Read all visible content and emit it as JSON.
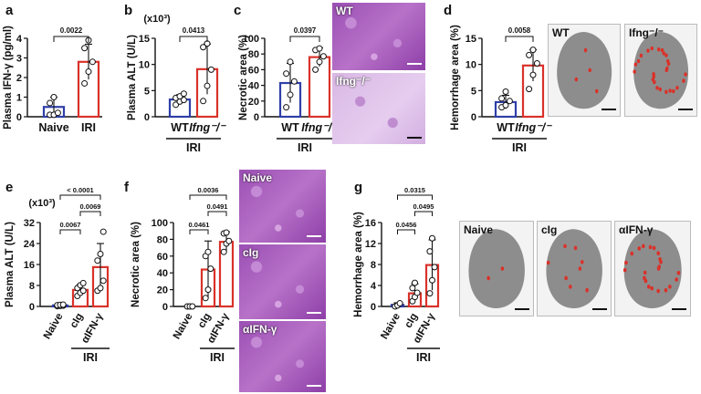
{
  "panels": {
    "a": {
      "letter": "a",
      "ylabel": "Plasma IFN-γ (pg/ml)",
      "yticks": [
        "0",
        "1",
        "2",
        "3",
        "4"
      ],
      "categories": [
        "Naive",
        "IRI"
      ],
      "pvalue": "0.0022"
    },
    "b": {
      "letter": "b",
      "ylabel": "Plasma ALT (U/L)",
      "scale": "(x10³)",
      "yticks": [
        "0",
        "5",
        "10",
        "15"
      ],
      "categories": [
        "WT",
        "Ifng⁻/⁻"
      ],
      "group": "IRI",
      "pvalue": "0.0413"
    },
    "c": {
      "letter": "c",
      "ylabel": "Necrotic area (%)",
      "yticks": [
        "0",
        "20",
        "40",
        "60",
        "80",
        "100"
      ],
      "categories": [
        "WT",
        "Ifng⁻/⁻"
      ],
      "group": "IRI",
      "pvalue": "0.0397",
      "images": [
        {
          "label": "WT"
        },
        {
          "label": "Ifng⁻/⁻"
        }
      ]
    },
    "d": {
      "letter": "d",
      "ylabel": "Hemorrhage area (%)",
      "yticks": [
        "0",
        "5",
        "10",
        "15"
      ],
      "categories": [
        "WT",
        "Ifng⁻/⁻"
      ],
      "group": "IRI",
      "pvalue": "0.0058",
      "images": [
        {
          "label": "WT"
        },
        {
          "label": "Ifng⁻/⁻"
        }
      ]
    },
    "e": {
      "letter": "e",
      "ylabel": "Plasma ALT (U/L)",
      "scale": "(x10³)",
      "yticks": [
        "0",
        "8",
        "16",
        "24",
        "32"
      ],
      "categories": [
        "Naive",
        "cIg",
        "αIFN-γ"
      ],
      "group": "IRI",
      "pvalues": [
        "< 0.0001",
        "0.0069",
        "0.0067"
      ]
    },
    "f": {
      "letter": "f",
      "ylabel": "Necrotic area (%)",
      "yticks": [
        "0",
        "20",
        "40",
        "60",
        "80",
        "100"
      ],
      "categories": [
        "Naive",
        "cIg",
        "αIFN-γ"
      ],
      "group": "IRI",
      "pvalues": [
        "0.0036",
        "0.0491",
        "0.0461"
      ],
      "images": [
        {
          "label": "Naive"
        },
        {
          "label": "cIg"
        },
        {
          "label": "αIFN-γ"
        }
      ]
    },
    "g": {
      "letter": "g",
      "ylabel": "Hemorrhage area (%)",
      "yticks": [
        "0",
        "4",
        "8",
        "12",
        "16"
      ],
      "categories": [
        "Naive",
        "cIg",
        "αIFN-γ"
      ],
      "group": "IRI",
      "pvalues": [
        "0.0315",
        "0.0495",
        "0.0456"
      ],
      "images": [
        {
          "label": "Naive"
        },
        {
          "label": "cIg"
        },
        {
          "label": "αIFN-γ"
        }
      ]
    }
  },
  "colors": {
    "naive": "#2f3fa8",
    "wt": "#2f3fa8",
    "ko": "#d9322a",
    "cig": "#d9322a",
    "aifng": "#d9322a",
    "tissue_red": "#d9322a"
  },
  "chart_data": [
    {
      "type": "bar",
      "panel": "a",
      "categories": [
        "Naive",
        "IRI"
      ],
      "values": [
        0.5,
        2.8
      ],
      "errors": [
        0.5,
        0.9
      ],
      "points": [
        [
          0.1,
          0.1,
          0.2,
          0.7,
          1.0
        ],
        [
          1.7,
          2.3,
          2.8,
          3.5,
          3.9
        ]
      ],
      "ylabel": "Plasma IFN-γ (pg/ml)",
      "ylim": [
        0,
        4
      ]
    },
    {
      "type": "bar",
      "panel": "b",
      "categories": [
        "WT",
        "Ifng⁻/⁻"
      ],
      "values": [
        3.3,
        9.1
      ],
      "errors": [
        0.9,
        4.8
      ],
      "points": [
        [
          2.3,
          2.9,
          3.2,
          3.6,
          3.9,
          4.4
        ],
        [
          3.0,
          5.9,
          9.0,
          13.3,
          14.0
        ]
      ],
      "ylabel": "Plasma ALT (U/L) (x10³)",
      "ylim": [
        0,
        15
      ]
    },
    {
      "type": "bar",
      "panel": "c",
      "categories": [
        "WT",
        "Ifng⁻/⁻"
      ],
      "values": [
        43,
        76
      ],
      "errors": [
        25,
        12
      ],
      "points": [
        [
          12,
          28,
          45,
          55,
          70
        ],
        [
          60,
          70,
          77,
          85,
          87
        ]
      ],
      "ylabel": "Necrotic area (%)",
      "ylim": [
        0,
        100
      ]
    },
    {
      "type": "bar",
      "panel": "d",
      "categories": [
        "WT",
        "Ifng⁻/⁻"
      ],
      "values": [
        2.8,
        9.8
      ],
      "errors": [
        1.3,
        3.0
      ],
      "points": [
        [
          1.8,
          2.2,
          3.0,
          3.5,
          4.8
        ],
        [
          5.3,
          8.0,
          10.2,
          11.8,
          12.8
        ]
      ],
      "ylabel": "Hemorrhage area (%)",
      "ylim": [
        0,
        15
      ]
    },
    {
      "type": "bar",
      "panel": "e",
      "categories": [
        "Naive",
        "cIg",
        "αIFN-γ"
      ],
      "values": [
        0.4,
        6.3,
        15.0
      ],
      "errors": [
        0.3,
        2.0,
        9.0
      ],
      "points": [
        [
          0.1,
          0.2,
          0.3,
          0.5,
          0.6,
          0.7
        ],
        [
          4.0,
          5.2,
          6.0,
          7.0,
          8.1,
          8.9
        ],
        [
          6.0,
          7.0,
          9.8,
          17.5,
          20.0,
          28.5
        ]
      ],
      "ylabel": "Plasma ALT (U/L) (x10³)",
      "ylim": [
        0,
        32
      ]
    },
    {
      "type": "bar",
      "panel": "f",
      "categories": [
        "Naive",
        "cIg",
        "αIFN-γ"
      ],
      "values": [
        0,
        44,
        77
      ],
      "errors": [
        0,
        34,
        12
      ],
      "points": [
        [
          0,
          0,
          0
        ],
        [
          10,
          20,
          45,
          60,
          65
        ],
        [
          65,
          75,
          78,
          87,
          88
        ]
      ],
      "ylabel": "Necrotic area (%)",
      "ylim": [
        0,
        100
      ]
    },
    {
      "type": "bar",
      "panel": "g",
      "categories": [
        "Naive",
        "cIg",
        "αIFN-γ"
      ],
      "values": [
        0.3,
        2.5,
        7.9
      ],
      "errors": [
        0.4,
        1.8,
        4.8
      ],
      "points": [
        [
          0,
          0.2,
          0.6
        ],
        [
          1.0,
          1.8,
          2.6,
          3.5,
          4.5
        ],
        [
          2.5,
          5.0,
          7.5,
          10.5,
          13.0
        ]
      ],
      "ylabel": "Hemorrhage area (%)",
      "ylim": [
        0,
        16
      ]
    }
  ]
}
